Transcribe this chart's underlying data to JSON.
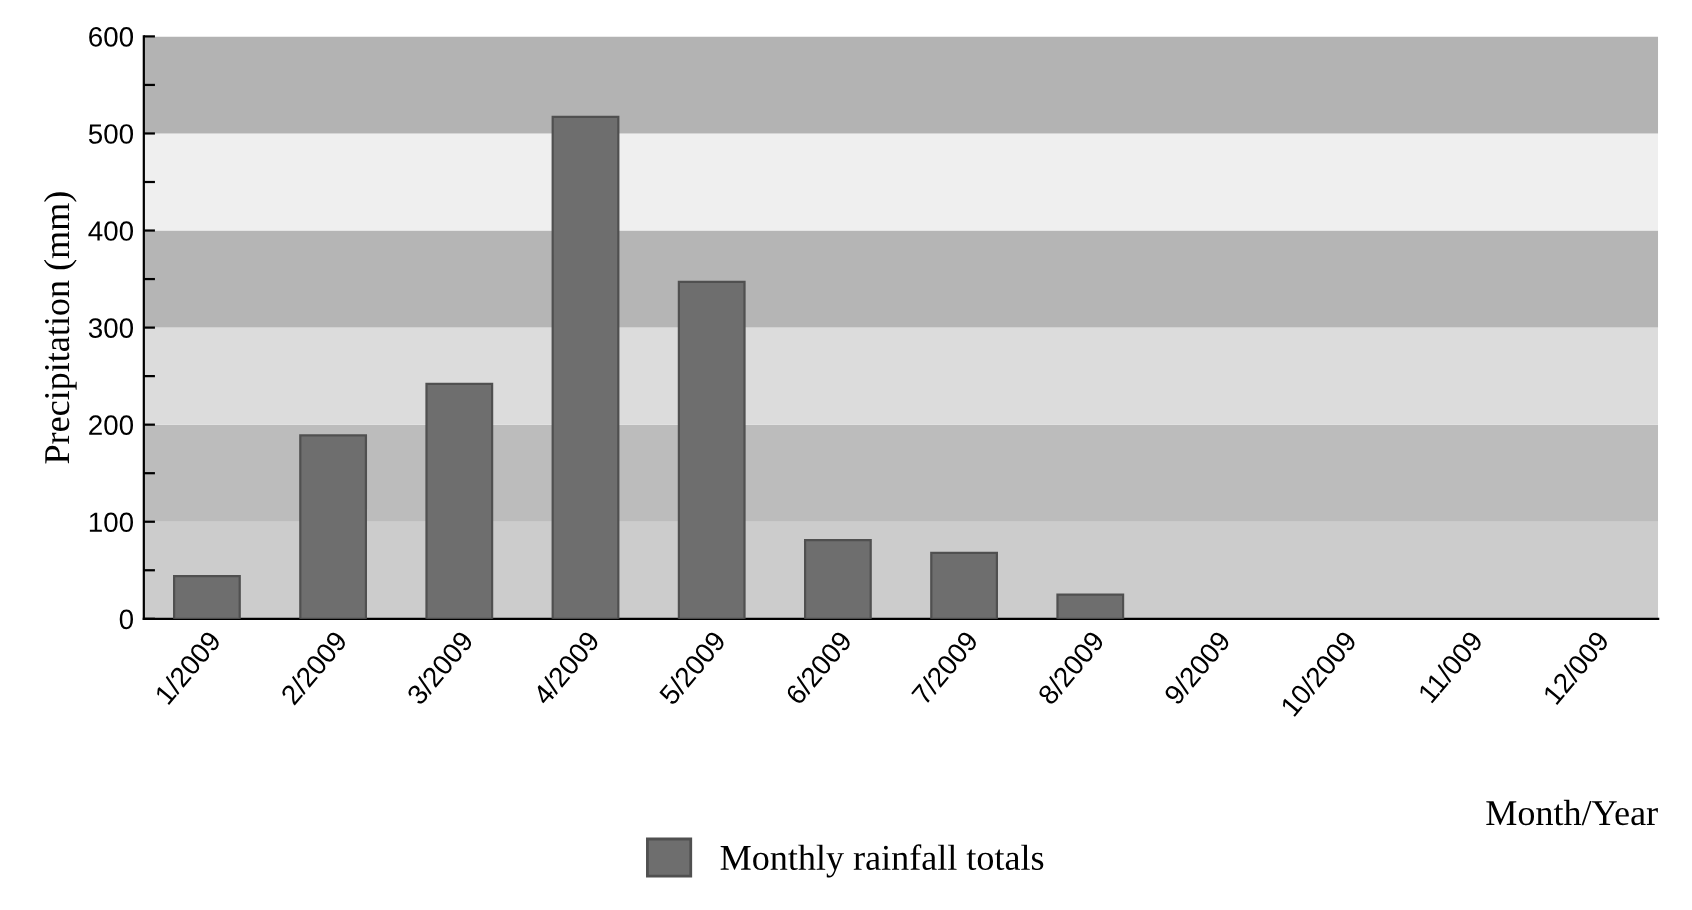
{
  "chart_data": {
    "type": "bar",
    "xlabel": "Month/Year",
    "ylabel": "Precipitation (mm)",
    "categories": [
      "1/2009",
      "2/2009",
      "3/2009",
      "4/2009",
      "5/2009",
      "6/2009",
      "7/2009",
      "8/2009",
      "9/2009",
      "10/2009",
      "11/009",
      "12/009"
    ],
    "series": [
      {
        "name": "Monthly rainfall totals",
        "color": "#6e6e6e",
        "values": [
          44,
          189,
          242,
          517,
          347,
          81,
          68,
          25,
          null,
          null,
          null,
          null
        ]
      }
    ],
    "ylim": [
      0,
      600
    ],
    "yticks": [
      0,
      {
        "value": 50,
        "label": null
      },
      100,
      {
        "value": 150,
        "label": null
      },
      200,
      {
        "value": 250,
        "label": null
      },
      300,
      {
        "value": 350,
        "label": null
      },
      400,
      {
        "value": 450,
        "label": null
      },
      500,
      {
        "value": 550,
        "label": null
      },
      600
    ],
    "bands": [
      {
        "axis": "y",
        "from": 0,
        "to": 100,
        "color": "#cccccc"
      },
      {
        "axis": "y",
        "from": 100,
        "to": 200,
        "color": "#bcbcbc"
      },
      {
        "axis": "y",
        "from": 200,
        "to": 300,
        "color": "#dcdcdc"
      },
      {
        "axis": "y",
        "from": 300,
        "to": 400,
        "color": "#b5b5b5"
      },
      {
        "axis": "y",
        "from": 400,
        "to": 500,
        "color": "#efefef"
      },
      {
        "axis": "y",
        "from": 500,
        "to": 600,
        "color": "#b3b3b3"
      }
    ],
    "grid": false,
    "legend": "bottom"
  }
}
